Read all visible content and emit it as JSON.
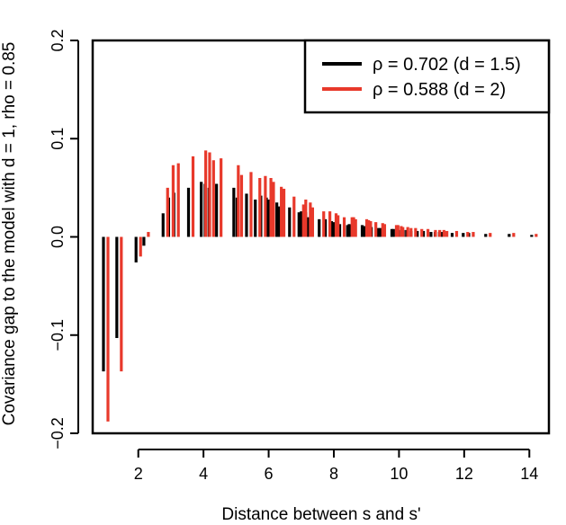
{
  "chart_data": {
    "type": "bar",
    "title": "",
    "xlabel": "Distance between s and s'",
    "ylabel": "Covariance gap to the model with d = 1, rho = 0.85",
    "xlim": [
      0.6,
      14.6
    ],
    "ylim": [
      -0.2,
      0.2
    ],
    "xticks": [
      2,
      4,
      6,
      8,
      10,
      12,
      14
    ],
    "yticks": [
      -0.2,
      -0.1,
      0.0,
      0.1,
      0.2
    ],
    "ytick_labels": [
      "−0.2",
      "−0.1",
      "0.0",
      "0.1",
      "0.2"
    ],
    "grid": false,
    "legend_position": "top-right",
    "series": [
      {
        "name": "ρ = 0.702  (d = 1.5)",
        "color": "#000000",
        "x": [
          1.0,
          1.41,
          2.0,
          2.24,
          2.83,
          3.0,
          3.16,
          3.61,
          4.0,
          4.12,
          4.24,
          4.47,
          5.0,
          5.1,
          5.39,
          5.66,
          5.83,
          6.0,
          6.08,
          6.32,
          6.4,
          6.71,
          7.0,
          7.07,
          7.21,
          7.28,
          7.62,
          7.81,
          8.0,
          8.06,
          8.25,
          8.49,
          8.54,
          8.6,
          8.94,
          9.0,
          9.06,
          9.22,
          9.43,
          9.49,
          9.85,
          9.9,
          10.0,
          10.05,
          10.2,
          10.3,
          10.44,
          10.63,
          10.82,
          11.05,
          11.18,
          11.31,
          11.4,
          11.7,
          12.04,
          12.21,
          12.73,
          13.45,
          14.14
        ],
        "values": [
          -0.137,
          -0.103,
          -0.026,
          -0.009,
          0.024,
          0.04,
          0.045,
          0.05,
          0.056,
          0.054,
          0.05,
          0.054,
          0.05,
          0.04,
          0.044,
          0.038,
          0.042,
          0.04,
          0.038,
          0.035,
          0.031,
          0.03,
          0.025,
          0.026,
          0.025,
          0.02,
          0.018,
          0.018,
          0.016,
          0.015,
          0.013,
          0.012,
          0.013,
          0.012,
          0.012,
          0.011,
          0.01,
          0.01,
          0.009,
          0.009,
          0.008,
          0.008,
          0.008,
          0.007,
          0.007,
          0.007,
          0.006,
          0.006,
          0.006,
          0.005,
          0.005,
          0.005,
          0.005,
          0.004,
          0.004,
          0.004,
          0.003,
          0.003,
          0.002
        ]
      },
      {
        "name": "ρ = 0.588  (d = 2)",
        "color": "#e8392b",
        "x": [
          1.0,
          1.41,
          2.0,
          2.24,
          2.83,
          3.0,
          3.16,
          3.61,
          4.0,
          4.12,
          4.24,
          4.47,
          5.0,
          5.1,
          5.39,
          5.66,
          5.83,
          6.0,
          6.08,
          6.32,
          6.4,
          6.71,
          7.0,
          7.07,
          7.21,
          7.28,
          7.62,
          7.81,
          8.0,
          8.06,
          8.25,
          8.49,
          8.54,
          8.6,
          8.94,
          9.0,
          9.06,
          9.22,
          9.43,
          9.49,
          9.85,
          9.9,
          10.0,
          10.05,
          10.2,
          10.3,
          10.44,
          10.63,
          10.82,
          11.05,
          11.18,
          11.31,
          11.4,
          11.7,
          12.04,
          12.21,
          12.73,
          13.45,
          14.14
        ],
        "values": [
          -0.188,
          -0.137,
          -0.02,
          0.005,
          0.05,
          0.073,
          0.075,
          0.082,
          0.088,
          0.086,
          0.078,
          0.08,
          0.073,
          0.063,
          0.066,
          0.06,
          0.062,
          0.06,
          0.056,
          0.051,
          0.049,
          0.041,
          0.033,
          0.038,
          0.035,
          0.03,
          0.026,
          0.026,
          0.024,
          0.022,
          0.02,
          0.02,
          0.02,
          0.018,
          0.018,
          0.017,
          0.016,
          0.015,
          0.014,
          0.013,
          0.012,
          0.012,
          0.011,
          0.01,
          0.01,
          0.009,
          0.009,
          0.008,
          0.008,
          0.007,
          0.007,
          0.007,
          0.006,
          0.006,
          0.005,
          0.005,
          0.004,
          0.004,
          0.003
        ]
      }
    ]
  }
}
